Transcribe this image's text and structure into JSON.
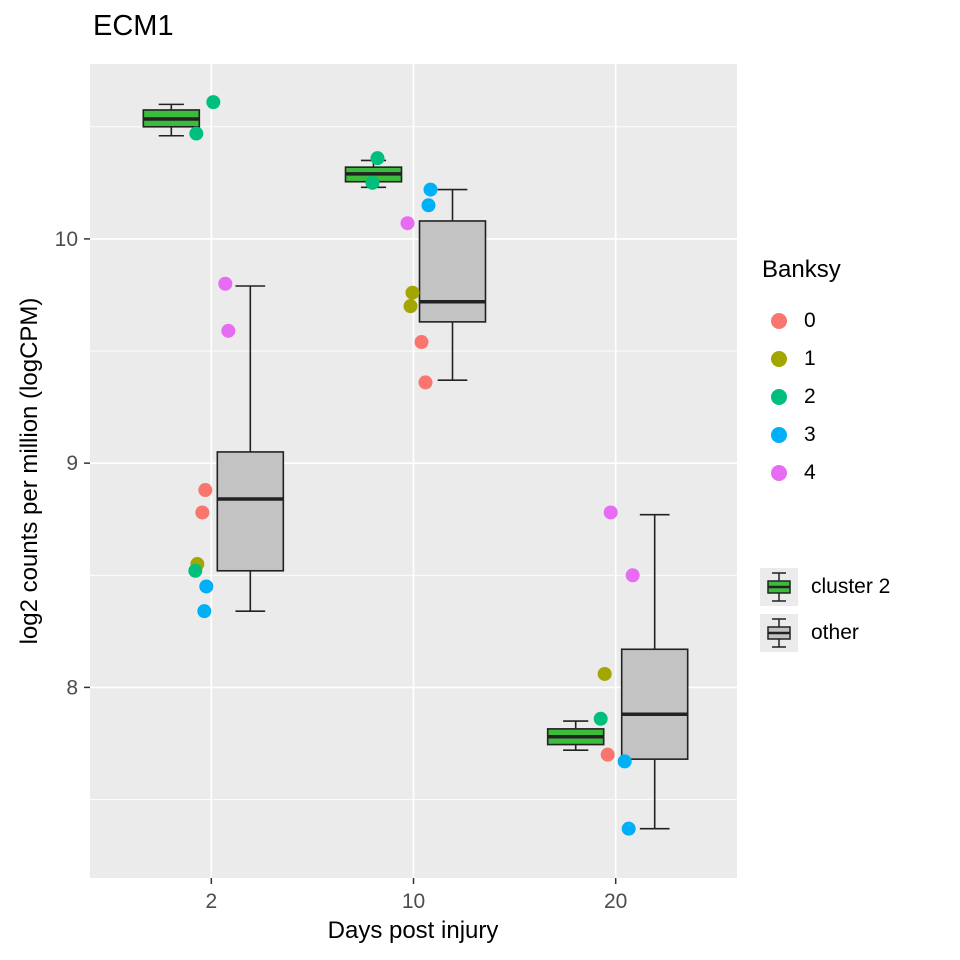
{
  "style": {
    "panel_bg": "#EBEBEB",
    "grid": "#FFFFFF",
    "box_stroke": "#222222",
    "axis_tick": "#333333",
    "tick_label_color": "#4D4D4D",
    "legend_key_bg": "#EBEBEB"
  },
  "chart_data": {
    "type": "boxplot",
    "title": "ECM1",
    "xlabel": "Days post injury",
    "ylabel": "log2 counts per million (logCPM)",
    "categories": [
      "2",
      "10",
      "20"
    ],
    "ylim": [
      7.15,
      10.78
    ],
    "y_major_ticks": [
      8,
      9,
      10
    ],
    "y_minor_ticks": [
      7.5,
      8.5,
      9.5,
      10.5
    ],
    "color_legend_title": "Banksy",
    "color_groups": [
      {
        "name": "0",
        "color": "#F8766D"
      },
      {
        "name": "1",
        "color": "#A3A500"
      },
      {
        "name": "2",
        "color": "#00BF7D"
      },
      {
        "name": "3",
        "color": "#00B0F6"
      },
      {
        "name": "4",
        "color": "#E76BF3"
      }
    ],
    "fill_groups": [
      {
        "name": "cluster 2",
        "fill": "#3CBC3C",
        "dodge": -40,
        "width": 56,
        "stats": [
          {
            "c": "2",
            "lo": 10.46,
            "q1": 10.5,
            "med": 10.535,
            "q3": 10.575,
            "hi": 10.6
          },
          {
            "c": "10",
            "lo": 10.23,
            "q1": 10.255,
            "med": 10.29,
            "q3": 10.32,
            "hi": 10.35
          },
          {
            "c": "20",
            "lo": 7.72,
            "q1": 7.745,
            "med": 7.78,
            "q3": 7.815,
            "hi": 7.85
          }
        ]
      },
      {
        "name": "other",
        "fill": "#C3C3C3",
        "dodge": 39,
        "width": 66,
        "stats": [
          {
            "c": "2",
            "lo": 8.34,
            "q1": 8.52,
            "med": 8.84,
            "q3": 9.05,
            "hi": 9.79
          },
          {
            "c": "10",
            "lo": 9.37,
            "q1": 9.63,
            "med": 9.72,
            "q3": 10.08,
            "hi": 10.22
          },
          {
            "c": "20",
            "lo": 7.37,
            "q1": 7.68,
            "med": 7.88,
            "q3": 8.17,
            "hi": 8.77
          }
        ]
      }
    ],
    "points": [
      {
        "c": "2",
        "g": "2",
        "v": 10.61,
        "j": 2
      },
      {
        "c": "2",
        "g": "2",
        "v": 10.47,
        "j": -15
      },
      {
        "c": "2",
        "g": "4",
        "v": 9.8,
        "j": 14
      },
      {
        "c": "2",
        "g": "4",
        "v": 9.59,
        "j": 17
      },
      {
        "c": "2",
        "g": "0",
        "v": 8.88,
        "j": -6
      },
      {
        "c": "2",
        "g": "0",
        "v": 8.78,
        "j": -9
      },
      {
        "c": "2",
        "g": "1",
        "v": 8.55,
        "j": -14
      },
      {
        "c": "2",
        "g": "2",
        "v": 8.52,
        "j": -16
      },
      {
        "c": "2",
        "g": "3",
        "v": 8.45,
        "j": -5
      },
      {
        "c": "2",
        "g": "3",
        "v": 8.34,
        "j": -7
      },
      {
        "c": "10",
        "g": "2",
        "v": 10.36,
        "j": -36
      },
      {
        "c": "10",
        "g": "2",
        "v": 10.25,
        "j": -41
      },
      {
        "c": "10",
        "g": "3",
        "v": 10.22,
        "j": 17
      },
      {
        "c": "10",
        "g": "3",
        "v": 10.15,
        "j": 15
      },
      {
        "c": "10",
        "g": "4",
        "v": 10.07,
        "j": -6
      },
      {
        "c": "10",
        "g": "1",
        "v": 9.76,
        "j": -1
      },
      {
        "c": "10",
        "g": "1",
        "v": 9.7,
        "j": -3
      },
      {
        "c": "10",
        "g": "0",
        "v": 9.54,
        "j": 8
      },
      {
        "c": "10",
        "g": "0",
        "v": 9.36,
        "j": 12
      },
      {
        "c": "20",
        "g": "4",
        "v": 8.78,
        "j": -5
      },
      {
        "c": "20",
        "g": "4",
        "v": 8.5,
        "j": 17
      },
      {
        "c": "20",
        "g": "1",
        "v": 8.06,
        "j": -11
      },
      {
        "c": "20",
        "g": "2",
        "v": 7.86,
        "j": -15
      },
      {
        "c": "20",
        "g": "0",
        "v": 7.7,
        "j": -8
      },
      {
        "c": "20",
        "g": "3",
        "v": 7.67,
        "j": 9
      },
      {
        "c": "20",
        "g": "3",
        "v": 7.37,
        "j": 13
      }
    ]
  }
}
